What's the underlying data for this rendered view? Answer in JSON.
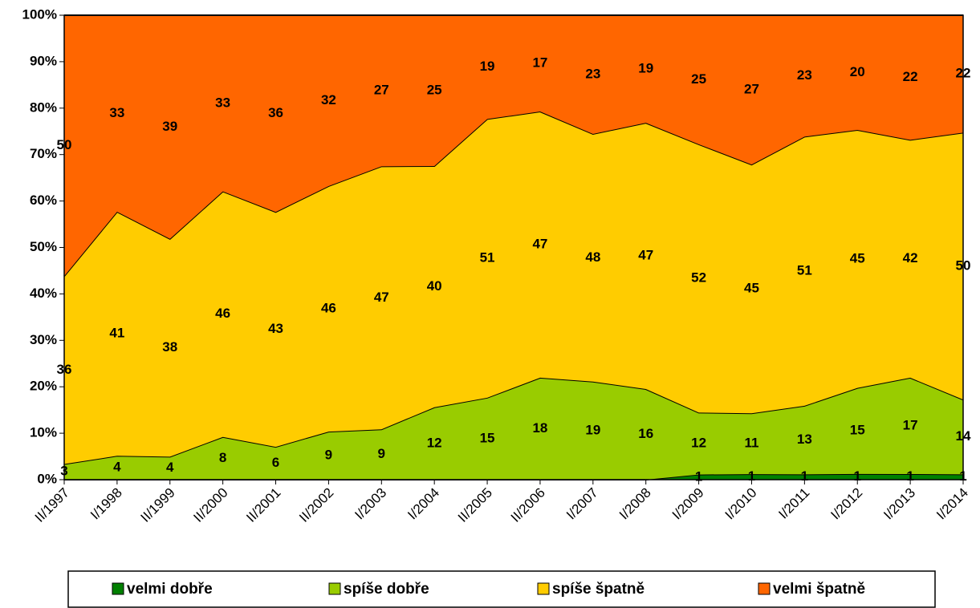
{
  "chart_data": {
    "type": "stacked_area_100",
    "categories": [
      "II/1997",
      "I/1998",
      "II/1999",
      "II/2000",
      "II/2001",
      "II/2002",
      "I/2003",
      "I/2004",
      "II/2005",
      "II/2006",
      "I/2007",
      "I/2008",
      "I/2009",
      "I/2010",
      "I/2011",
      "I/2012",
      "I/2013",
      "I/2014"
    ],
    "series": [
      {
        "name": "velmi dobře",
        "color": "#008000",
        "values": [
          0,
          0,
          0,
          0,
          0,
          0,
          0,
          0,
          0,
          0,
          0,
          0,
          1,
          1,
          1,
          1,
          1,
          1
        ]
      },
      {
        "name": "spíše dobře",
        "color": "#99cc00",
        "values": [
          3,
          4,
          4,
          8,
          6,
          9,
          9,
          12,
          15,
          18,
          19,
          16,
          12,
          11,
          13,
          15,
          17,
          14
        ]
      },
      {
        "name": "spíše špatně",
        "color": "#ffcc00",
        "values": [
          36,
          41,
          38,
          46,
          43,
          46,
          47,
          40,
          51,
          47,
          48,
          47,
          52,
          45,
          51,
          45,
          42,
          50
        ]
      },
      {
        "name": "velmi špatně",
        "color": "#ff6600",
        "values": [
          50,
          33,
          39,
          33,
          36,
          32,
          27,
          25,
          19,
          17,
          23,
          19,
          25,
          27,
          23,
          20,
          22,
          22
        ]
      }
    ],
    "ylim": [
      0,
      100
    ],
    "yticks": [
      {
        "value": 0,
        "label": "0%"
      },
      {
        "value": 10,
        "label": "10%"
      },
      {
        "value": 20,
        "label": "20%"
      },
      {
        "value": 30,
        "label": "30%"
      },
      {
        "value": 40,
        "label": "40%"
      },
      {
        "value": 50,
        "label": "50%"
      },
      {
        "value": 60,
        "label": "60%"
      },
      {
        "value": 70,
        "label": "70%"
      },
      {
        "value": 80,
        "label": "80%"
      },
      {
        "value": 90,
        "label": "90%"
      },
      {
        "value": 100,
        "label": "100%"
      }
    ],
    "legend": "bottom"
  }
}
